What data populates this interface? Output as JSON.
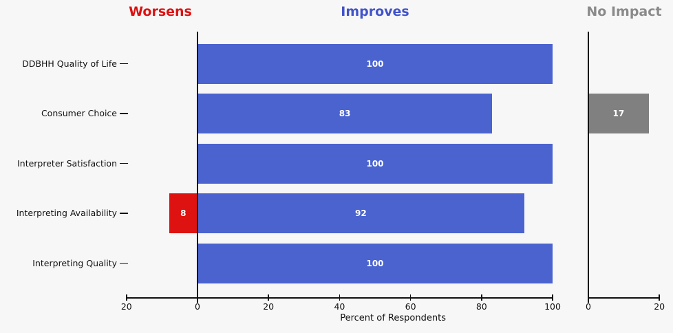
{
  "headers": {
    "worsens": "Worsens",
    "improves": "Improves",
    "no_impact": "No Impact"
  },
  "xlabel": "Percent of Respondents",
  "colors": {
    "background": "#f7f7f7",
    "axis": "#111111",
    "worsens_header": "#dd1111",
    "improves_header": "#4053cb",
    "no_impact_header": "#8a8a8a",
    "worsens_bar": "#dd1211",
    "improves_bar": "#4a63cf",
    "no_impact_bar": "#808080",
    "bar_value_text": "#ffffff"
  },
  "chart_data": {
    "type": "bar",
    "orientation": "horizontal",
    "title": "",
    "xlabel": "Percent of Respondents",
    "categories": [
      "DDBHH Quality of Life",
      "Consumer Choice",
      "Interpreter Satisfaction",
      "Interpreting Availability",
      "Interpreting Quality"
    ],
    "series": [
      {
        "name": "Worsens",
        "panel": "main",
        "direction": "left",
        "color": "#dd1211",
        "values": [
          0,
          0,
          0,
          8,
          0
        ]
      },
      {
        "name": "Improves",
        "panel": "main",
        "direction": "right",
        "color": "#4a63cf",
        "values": [
          100,
          83,
          100,
          92,
          100
        ]
      },
      {
        "name": "No Impact",
        "panel": "no_impact",
        "direction": "right",
        "color": "#808080",
        "values": [
          0,
          17,
          0,
          0,
          0
        ]
      }
    ],
    "value_labels_shown": true,
    "main_axis": {
      "xlim": [
        -20,
        100
      ],
      "ticks": [
        -20,
        0,
        20,
        40,
        60,
        80,
        100
      ],
      "tick_labels": [
        "20",
        "0",
        "20",
        "40",
        "60",
        "80",
        "100"
      ]
    },
    "no_impact_axis": {
      "xlim": [
        0,
        20
      ],
      "ticks": [
        0,
        20
      ],
      "tick_labels": [
        "0",
        "20"
      ]
    },
    "grid": false,
    "legend": "none (panel headers act as series labels)"
  }
}
